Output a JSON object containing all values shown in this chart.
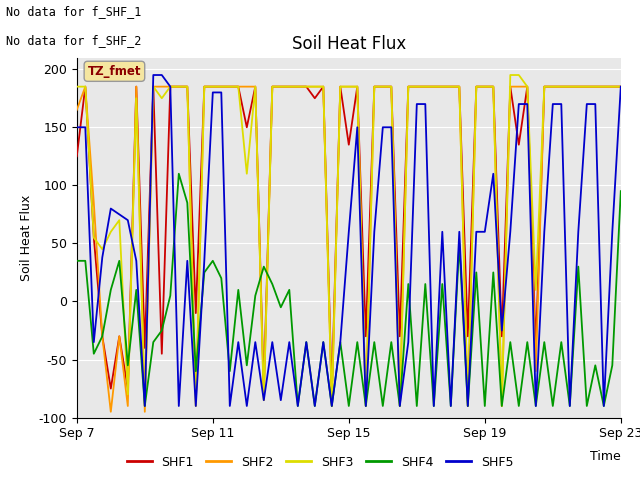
{
  "title": "Soil Heat Flux",
  "xlabel": "Time",
  "ylabel": "Soil Heat Flux",
  "ylim": [
    -100,
    210
  ],
  "yticks": [
    -100,
    -50,
    0,
    50,
    100,
    150,
    200
  ],
  "text_lines": [
    "No data for f_SHF_1",
    "No data for f_SHF_2"
  ],
  "tz_label": "TZ_fmet",
  "legend_labels": [
    "SHF1",
    "SHF2",
    "SHF3",
    "SHF4",
    "SHF5"
  ],
  "colors": {
    "SHF1": "#cc0000",
    "SHF2": "#ff9900",
    "SHF3": "#dddd00",
    "SHF4": "#009900",
    "SHF5": "#0000cc"
  },
  "shf1_x": [
    0,
    0.25,
    0.5,
    0.75,
    1.0,
    1.25,
    1.5,
    1.75,
    2.0,
    2.25,
    2.5,
    2.75,
    3.0,
    3.25,
    3.5,
    3.75,
    4.0,
    4.25,
    4.5,
    4.75,
    5.0,
    5.25,
    5.5,
    5.75,
    6.0,
    6.25,
    6.5,
    6.75,
    7.0,
    7.25,
    7.5,
    7.75,
    8.0,
    8.25,
    8.5,
    8.75,
    9.0,
    9.25,
    9.5,
    9.75,
    10.0,
    10.25,
    10.5,
    10.75,
    11.0,
    11.25,
    11.5,
    11.75,
    12.0,
    12.25,
    12.5,
    12.75,
    13.0,
    13.25,
    13.5,
    13.75,
    14.0,
    14.25,
    14.5,
    14.75,
    15.0,
    15.25,
    15.5,
    15.75,
    16.0
  ],
  "shf1_y": [
    125,
    185,
    55,
    -30,
    -75,
    -30,
    -75,
    185,
    -40,
    185,
    -45,
    185,
    185,
    185,
    -10,
    185,
    185,
    185,
    185,
    185,
    150,
    185,
    -75,
    185,
    185,
    185,
    185,
    185,
    175,
    185,
    -78,
    185,
    135,
    185,
    -30,
    185,
    185,
    185,
    -30,
    185,
    185,
    185,
    185,
    185,
    185,
    185,
    -30,
    185,
    185,
    185,
    -30,
    185,
    135,
    185,
    -40,
    185,
    185,
    185,
    185,
    185,
    185,
    185,
    185,
    185,
    185
  ],
  "shf2_x": [
    0,
    0.25,
    0.5,
    0.75,
    1.0,
    1.25,
    1.5,
    1.75,
    2.0,
    2.25,
    2.5,
    2.75,
    3.0,
    3.25,
    3.5,
    3.75,
    4.0,
    4.25,
    4.5,
    4.75,
    5.0,
    5.25,
    5.5,
    5.75,
    6.0,
    6.25,
    6.5,
    6.75,
    7.0,
    7.25,
    7.5,
    7.75,
    8.0,
    8.25,
    8.5,
    8.75,
    9.0,
    9.25,
    9.5,
    9.75,
    10.0,
    10.25,
    10.5,
    10.75,
    11.0,
    11.25,
    11.5,
    11.75,
    12.0,
    12.25,
    12.5,
    12.75,
    13.0,
    13.25,
    13.5,
    13.75,
    14.0,
    14.25,
    14.5,
    14.75,
    15.0,
    15.25,
    15.5,
    15.75,
    16.0
  ],
  "shf2_y": [
    165,
    185,
    85,
    -30,
    -95,
    -30,
    -90,
    185,
    -95,
    185,
    185,
    185,
    185,
    185,
    -90,
    185,
    185,
    185,
    185,
    185,
    185,
    185,
    -85,
    185,
    185,
    185,
    185,
    185,
    185,
    185,
    -90,
    185,
    185,
    185,
    -90,
    185,
    185,
    185,
    -90,
    185,
    185,
    185,
    185,
    185,
    185,
    185,
    -90,
    185,
    185,
    185,
    -90,
    185,
    185,
    185,
    -60,
    185,
    185,
    185,
    185,
    185,
    185,
    185,
    185,
    185,
    185
  ],
  "shf3_x": [
    0,
    0.25,
    0.5,
    0.75,
    1.0,
    1.25,
    1.5,
    1.75,
    2.0,
    2.25,
    2.5,
    2.75,
    3.0,
    3.25,
    3.5,
    3.75,
    4.0,
    4.25,
    4.5,
    4.75,
    5.0,
    5.25,
    5.5,
    5.75,
    6.0,
    6.25,
    6.5,
    6.75,
    7.0,
    7.25,
    7.5,
    7.75,
    8.0,
    8.25,
    8.5,
    8.75,
    9.0,
    9.25,
    9.5,
    9.75,
    10.0,
    10.25,
    10.5,
    10.75,
    11.0,
    11.25,
    11.5,
    11.75,
    12.0,
    12.25,
    12.5,
    12.75,
    13.0,
    13.25,
    13.5,
    13.75,
    14.0,
    14.25,
    14.5,
    14.75,
    15.0,
    15.25,
    15.5,
    15.75,
    16.0
  ],
  "shf3_y": [
    185,
    185,
    55,
    45,
    60,
    70,
    -80,
    175,
    -90,
    185,
    175,
    185,
    185,
    185,
    -90,
    185,
    185,
    185,
    185,
    185,
    110,
    185,
    -85,
    185,
    185,
    185,
    185,
    185,
    185,
    185,
    -90,
    185,
    185,
    185,
    -90,
    185,
    185,
    185,
    -90,
    185,
    185,
    185,
    185,
    185,
    185,
    185,
    -90,
    185,
    185,
    185,
    -90,
    195,
    195,
    185,
    10,
    185,
    185,
    185,
    185,
    185,
    185,
    185,
    185,
    185,
    185
  ],
  "shf4_x": [
    0,
    0.25,
    0.5,
    0.75,
    1.0,
    1.25,
    1.5,
    1.75,
    2.0,
    2.25,
    2.5,
    2.75,
    3.0,
    3.25,
    3.5,
    3.75,
    4.0,
    4.25,
    4.5,
    4.75,
    5.0,
    5.25,
    5.5,
    5.75,
    6.0,
    6.25,
    6.5,
    6.75,
    7.0,
    7.25,
    7.5,
    7.75,
    8.0,
    8.25,
    8.5,
    8.75,
    9.0,
    9.25,
    9.5,
    9.75,
    10.0,
    10.25,
    10.5,
    10.75,
    11.0,
    11.25,
    11.5,
    11.75,
    12.0,
    12.25,
    12.5,
    12.75,
    13.0,
    13.25,
    13.5,
    13.75,
    14.0,
    14.25,
    14.5,
    14.75,
    15.0,
    15.25,
    15.5,
    15.75,
    16.0
  ],
  "shf4_y": [
    35,
    35,
    -45,
    -30,
    10,
    35,
    -55,
    10,
    -90,
    -35,
    -25,
    5,
    110,
    85,
    -60,
    25,
    35,
    20,
    -60,
    10,
    -55,
    5,
    30,
    15,
    -5,
    10,
    -90,
    -35,
    -90,
    -35,
    -90,
    -35,
    -90,
    -35,
    -90,
    -35,
    -90,
    -35,
    -90,
    15,
    -90,
    15,
    -90,
    15,
    -90,
    50,
    -90,
    25,
    -90,
    25,
    -90,
    -35,
    -90,
    -35,
    -90,
    -35,
    -90,
    -35,
    -90,
    30,
    -90,
    -55,
    -90,
    -55,
    95
  ],
  "shf5_x": [
    0,
    0.25,
    0.5,
    0.75,
    1.0,
    1.25,
    1.5,
    1.75,
    2.0,
    2.25,
    2.5,
    2.75,
    3.0,
    3.25,
    3.5,
    3.75,
    4.0,
    4.25,
    4.5,
    4.75,
    5.0,
    5.25,
    5.5,
    5.75,
    6.0,
    6.25,
    6.5,
    6.75,
    7.0,
    7.25,
    7.5,
    7.75,
    8.0,
    8.25,
    8.5,
    8.75,
    9.0,
    9.25,
    9.5,
    9.75,
    10.0,
    10.25,
    10.5,
    10.75,
    11.0,
    11.25,
    11.5,
    11.75,
    12.0,
    12.25,
    12.5,
    12.75,
    13.0,
    13.25,
    13.5,
    13.75,
    14.0,
    14.25,
    14.5,
    14.75,
    15.0,
    15.25,
    15.5,
    15.75,
    16.0
  ],
  "shf5_y": [
    150,
    150,
    -35,
    38,
    80,
    75,
    70,
    35,
    -90,
    195,
    195,
    185,
    -90,
    35,
    -90,
    35,
    180,
    180,
    -90,
    -35,
    -90,
    -35,
    -85,
    -35,
    -85,
    -35,
    -90,
    -35,
    -90,
    -35,
    -90,
    -35,
    60,
    150,
    -90,
    60,
    150,
    150,
    -90,
    -35,
    170,
    170,
    -90,
    60,
    -90,
    60,
    -90,
    60,
    60,
    110,
    -25,
    60,
    170,
    170,
    -90,
    60,
    170,
    170,
    -90,
    60,
    170,
    170,
    -90,
    60,
    185
  ],
  "x_ticks": [
    0,
    4,
    8,
    12,
    16
  ],
  "x_tick_labels": [
    "Sep 7",
    "Sep 11",
    "Sep 15",
    "Sep 19",
    "Sep 23"
  ]
}
